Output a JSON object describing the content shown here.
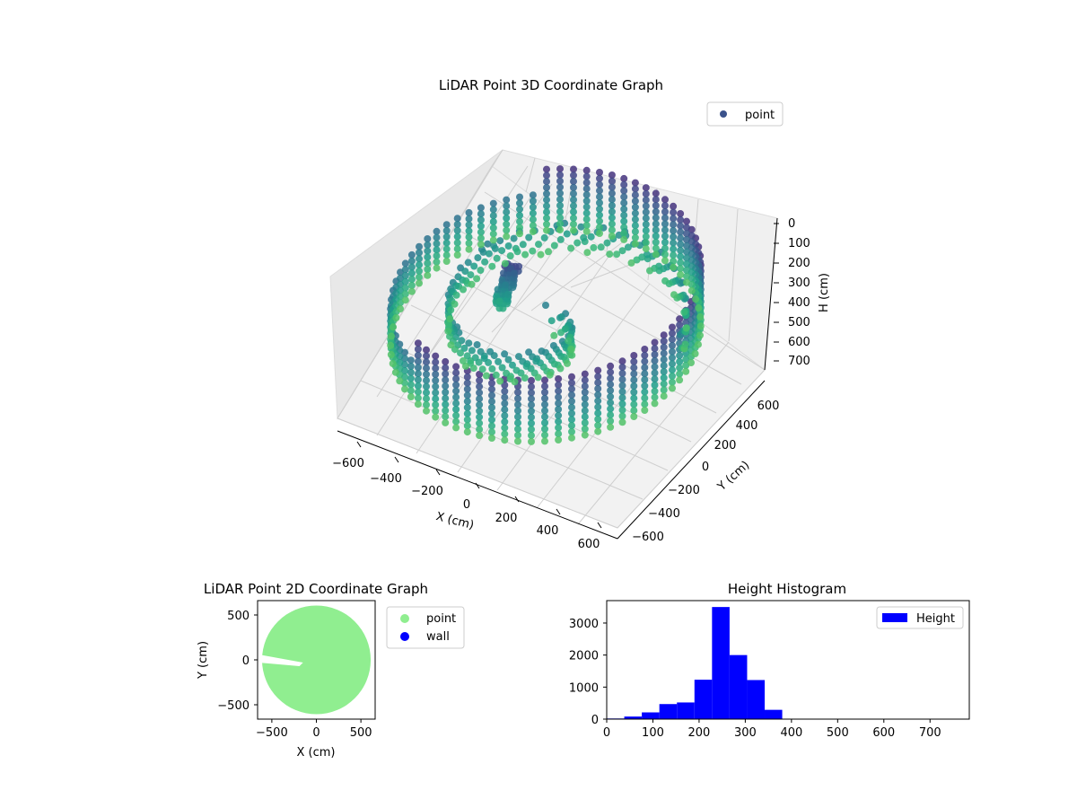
{
  "chart_data": [
    {
      "type": "scatter",
      "projection": "3d",
      "title": "LiDAR Point 3D Coordinate Graph",
      "xlabel": "X (cm)",
      "ylabel": "Y (cm)",
      "zlabel": "H (cm)",
      "xlim": [
        -650,
        650
      ],
      "ylim": [
        -650,
        650
      ],
      "zlim": [
        750,
        0
      ],
      "z_axis_inverted": true,
      "xticks": [
        "−600",
        "−400",
        "−200",
        "0",
        "200",
        "400",
        "600"
      ],
      "yticks": [
        "−600",
        "−400",
        "−200",
        "0",
        "200",
        "400",
        "600"
      ],
      "zticks": [
        "0",
        "100",
        "200",
        "300",
        "400",
        "500",
        "600",
        "700"
      ],
      "grid": true,
      "legend": {
        "position": "top-right",
        "entries": [
          {
            "label": "point",
            "color": "#3b528b"
          }
        ]
      },
      "colormap": "viridis",
      "structure": {
        "ring_radius": 600,
        "ring_top_height": 0,
        "ring_bottom_height": 400,
        "gap_angle_range_deg": [
          110,
          235
        ],
        "inner_surface_height_range": [
          200,
          400
        ],
        "cluster_center": [
          -150,
          50
        ],
        "cluster_height_range": [
          30,
          350
        ]
      }
    },
    {
      "type": "scatter",
      "title": "LiDAR Point 2D Coordinate Graph",
      "xlabel": "X (cm)",
      "ylabel": "Y (cm)",
      "xlim": [
        -660,
        660
      ],
      "ylim": [
        -660,
        660
      ],
      "xticks": [
        "−500",
        "0",
        "500"
      ],
      "yticks": [
        "500",
        "0",
        "−500"
      ],
      "legend": {
        "position": "outside-right",
        "entries": [
          {
            "label": "point",
            "color": "#90ee90"
          },
          {
            "label": "wall",
            "color": "#0000ff"
          }
        ]
      },
      "series": [
        {
          "name": "point",
          "color": "#90ee90",
          "shape": "disc",
          "center": [
            0,
            0
          ],
          "radius": 610,
          "notch": {
            "from_x": -650,
            "to_x": -150,
            "y_range": [
              -30,
              60
            ]
          }
        },
        {
          "name": "wall",
          "color": "#0000ff",
          "points": []
        }
      ]
    },
    {
      "type": "bar",
      "subtype": "histogram",
      "title": "Height Histogram",
      "xlim": [
        0,
        785
      ],
      "ylim": [
        0,
        3700
      ],
      "xticks": [
        "0",
        "100",
        "200",
        "300",
        "400",
        "500",
        "600",
        "700"
      ],
      "yticks": [
        "0",
        "1000",
        "2000",
        "3000"
      ],
      "color": "#0000ff",
      "legend": {
        "position": "top-right",
        "entries": [
          {
            "label": "Height",
            "color": "#0000ff"
          }
        ]
      },
      "bin_edges": [
        0,
        38,
        76,
        114,
        152,
        190,
        228,
        266,
        304,
        342,
        380,
        418,
        456,
        494,
        532,
        570,
        608,
        646,
        684,
        722,
        760
      ],
      "values": [
        20,
        80,
        210,
        470,
        520,
        1230,
        3500,
        2000,
        1220,
        290,
        0,
        0,
        0,
        0,
        0,
        0,
        0,
        0,
        0,
        0
      ]
    }
  ]
}
